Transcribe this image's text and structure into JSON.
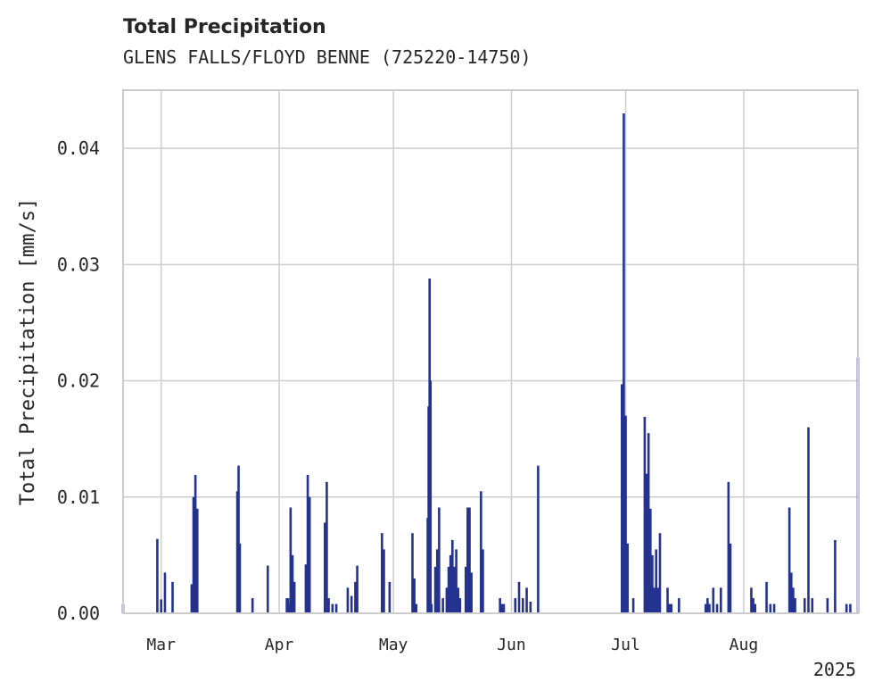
{
  "chart_data": {
    "type": "bar",
    "title": "Total Precipitation",
    "subtitle": "GLENS FALLS/FLOYD BENNE (725220-14750)",
    "ylabel": "Total Precipitation [mm/s]",
    "xlabel": "",
    "year_label": "2025",
    "ylim": [
      0,
      0.045
    ],
    "xlim": [
      "2025-02-19",
      "2025-08-31"
    ],
    "grid": true,
    "legend": "none",
    "color": "#25338f",
    "yticks": [
      {
        "value": 0.0,
        "label": "0.00"
      },
      {
        "value": 0.01,
        "label": "0.01"
      },
      {
        "value": 0.02,
        "label": "0.02"
      },
      {
        "value": 0.03,
        "label": "0.03"
      },
      {
        "value": 0.04,
        "label": "0.04"
      }
    ],
    "xticks": [
      {
        "date": "2025-03-01",
        "label": "Mar"
      },
      {
        "date": "2025-04-01",
        "label": "Apr"
      },
      {
        "date": "2025-05-01",
        "label": "May"
      },
      {
        "date": "2025-06-01",
        "label": "Jun"
      },
      {
        "date": "2025-07-01",
        "label": "Jul"
      },
      {
        "date": "2025-08-01",
        "label": "Aug"
      }
    ],
    "x": [
      "2025-02-19",
      "2025-02-28",
      "2025-03-01",
      "2025-03-02",
      "2025-03-04",
      "2025-03-09",
      "2025-03-09T12:00",
      "2025-03-10",
      "2025-03-10T12:00",
      "2025-03-21",
      "2025-03-21T08:00",
      "2025-03-21T16:00",
      "2025-03-25",
      "2025-03-29",
      "2025-04-03",
      "2025-04-03T08:00",
      "2025-04-03T16:00",
      "2025-04-04",
      "2025-04-04T12:00",
      "2025-04-05",
      "2025-04-08",
      "2025-04-08T12:00",
      "2025-04-09",
      "2025-04-13",
      "2025-04-13T12:00",
      "2025-04-14",
      "2025-04-15",
      "2025-04-16",
      "2025-04-19",
      "2025-04-20",
      "2025-04-21",
      "2025-04-21T12:00",
      "2025-04-28",
      "2025-04-28T12:00",
      "2025-04-30",
      "2025-05-06",
      "2025-05-06T12:00",
      "2025-05-07",
      "2025-05-10",
      "2025-05-10T06:00",
      "2025-05-10T12:00",
      "2025-05-10T18:00",
      "2025-05-11",
      "2025-05-12",
      "2025-05-12T12:00",
      "2025-05-13",
      "2025-05-14",
      "2025-05-15",
      "2025-05-15T12:00",
      "2025-05-16",
      "2025-05-16T12:00",
      "2025-05-17",
      "2025-05-17T12:00",
      "2025-05-18",
      "2025-05-18T12:00",
      "2025-05-20",
      "2025-05-20T12:00",
      "2025-05-21",
      "2025-05-21T12:00",
      "2025-05-24",
      "2025-05-24T12:00",
      "2025-05-29",
      "2025-05-29T12:00",
      "2025-05-30",
      "2025-06-02",
      "2025-06-03",
      "2025-06-04",
      "2025-06-05",
      "2025-06-06",
      "2025-06-08",
      "2025-06-30",
      "2025-06-30T12:00",
      "2025-07-01",
      "2025-07-01T12:00",
      "2025-07-03",
      "2025-07-06",
      "2025-07-06T12:00",
      "2025-07-07",
      "2025-07-07T12:00",
      "2025-07-08",
      "2025-07-08T12:00",
      "2025-07-09",
      "2025-07-09T12:00",
      "2025-07-10",
      "2025-07-12",
      "2025-07-12T12:00",
      "2025-07-13",
      "2025-07-15",
      "2025-07-22",
      "2025-07-22T12:00",
      "2025-07-23",
      "2025-07-24",
      "2025-07-25",
      "2025-07-26",
      "2025-07-28",
      "2025-07-28T12:00",
      "2025-08-03",
      "2025-08-03T12:00",
      "2025-08-04",
      "2025-08-07",
      "2025-08-08",
      "2025-08-09",
      "2025-08-13",
      "2025-08-13T12:00",
      "2025-08-14",
      "2025-08-14T12:00",
      "2025-08-17",
      "2025-08-18",
      "2025-08-19",
      "2025-08-23",
      "2025-08-25",
      "2025-08-28",
      "2025-08-29",
      "2025-08-31"
    ],
    "values": [
      0.0008,
      0.0064,
      0.0012,
      0.0035,
      0.0027,
      0.0025,
      0.01,
      0.0119,
      0.009,
      0.0105,
      0.0127,
      0.006,
      0.0013,
      0.0041,
      0.0013,
      0.0013,
      0.0008,
      0.0091,
      0.005,
      0.0027,
      0.0042,
      0.0119,
      0.01,
      0.0078,
      0.0113,
      0.0013,
      0.0008,
      0.0008,
      0.0022,
      0.0015,
      0.0027,
      0.0041,
      0.0069,
      0.0055,
      0.0027,
      0.0069,
      0.003,
      0.0008,
      0.0082,
      0.0178,
      0.0288,
      0.02,
      0.0008,
      0.004,
      0.0055,
      0.0091,
      0.0013,
      0.0022,
      0.004,
      0.005,
      0.0063,
      0.004,
      0.0055,
      0.0022,
      0.0013,
      0.004,
      0.0091,
      0.0091,
      0.0035,
      0.0105,
      0.0055,
      0.0013,
      0.0008,
      0.0008,
      0.0013,
      0.0027,
      0.0013,
      0.0022,
      0.001,
      0.0127,
      0.0197,
      0.043,
      0.017,
      0.006,
      0.0013,
      0.0169,
      0.012,
      0.0155,
      0.009,
      0.005,
      0.0022,
      0.0055,
      0.0022,
      0.0069,
      0.0022,
      0.0008,
      0.0008,
      0.0013,
      0.0008,
      0.0013,
      0.0008,
      0.0022,
      0.0008,
      0.0022,
      0.0113,
      0.006,
      0.0022,
      0.0013,
      0.0008,
      0.0027,
      0.0008,
      0.0008,
      0.0091,
      0.0035,
      0.0022,
      0.0013,
      0.0013,
      0.016,
      0.0013,
      0.0013,
      0.0063,
      0.0008,
      0.0008,
      0.022
    ]
  }
}
